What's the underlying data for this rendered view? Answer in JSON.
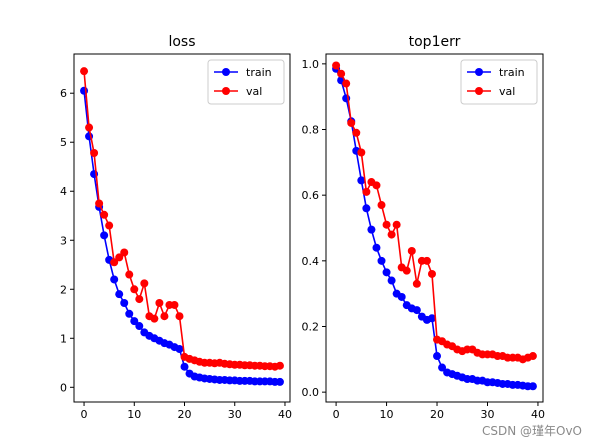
{
  "chart_data": [
    {
      "type": "line",
      "title": "loss",
      "xlabel": "",
      "ylabel": "",
      "xlim": [
        -2,
        41
      ],
      "ylim": [
        -0.3,
        6.8
      ],
      "xticks": [
        0,
        10,
        20,
        30,
        40
      ],
      "yticks": [
        0,
        1,
        2,
        3,
        4,
        5,
        6
      ],
      "legend_position": "top-right",
      "x": [
        0,
        1,
        2,
        3,
        4,
        5,
        6,
        7,
        8,
        9,
        10,
        11,
        12,
        13,
        14,
        15,
        16,
        17,
        18,
        19,
        20,
        21,
        22,
        23,
        24,
        25,
        26,
        27,
        28,
        29,
        30,
        31,
        32,
        33,
        34,
        35,
        36,
        37,
        38,
        39
      ],
      "series": [
        {
          "name": "train",
          "color": "#0000ff",
          "values": [
            6.05,
            5.12,
            4.35,
            3.68,
            3.1,
            2.6,
            2.2,
            1.9,
            1.72,
            1.5,
            1.35,
            1.25,
            1.12,
            1.05,
            1.0,
            0.95,
            0.9,
            0.87,
            0.82,
            0.78,
            0.42,
            0.28,
            0.22,
            0.2,
            0.18,
            0.17,
            0.16,
            0.15,
            0.15,
            0.14,
            0.14,
            0.13,
            0.13,
            0.13,
            0.12,
            0.12,
            0.12,
            0.12,
            0.11,
            0.11
          ]
        },
        {
          "name": "val",
          "color": "#ff0000",
          "values": [
            6.45,
            5.3,
            4.78,
            3.75,
            3.52,
            3.3,
            2.55,
            2.65,
            2.75,
            2.3,
            2.0,
            1.8,
            2.12,
            1.45,
            1.4,
            1.72,
            1.45,
            1.68,
            1.68,
            1.45,
            0.62,
            0.58,
            0.55,
            0.52,
            0.5,
            0.5,
            0.49,
            0.5,
            0.48,
            0.47,
            0.46,
            0.46,
            0.45,
            0.45,
            0.44,
            0.44,
            0.43,
            0.43,
            0.42,
            0.44
          ]
        }
      ]
    },
    {
      "type": "line",
      "title": "top1err",
      "xlabel": "",
      "ylabel": "",
      "xlim": [
        -2,
        41
      ],
      "ylim": [
        -0.03,
        1.03
      ],
      "xticks": [
        0,
        10,
        20,
        30,
        40
      ],
      "yticks": [
        0.0,
        0.2,
        0.4,
        0.6,
        0.8,
        1.0
      ],
      "legend_position": "top-right",
      "x": [
        0,
        1,
        2,
        3,
        4,
        5,
        6,
        7,
        8,
        9,
        10,
        11,
        12,
        13,
        14,
        15,
        16,
        17,
        18,
        19,
        20,
        21,
        22,
        23,
        24,
        25,
        26,
        27,
        28,
        29,
        30,
        31,
        32,
        33,
        34,
        35,
        36,
        37,
        38,
        39
      ],
      "series": [
        {
          "name": "train",
          "color": "#0000ff",
          "values": [
            0.985,
            0.95,
            0.895,
            0.825,
            0.735,
            0.645,
            0.56,
            0.495,
            0.44,
            0.4,
            0.365,
            0.34,
            0.3,
            0.29,
            0.265,
            0.255,
            0.25,
            0.23,
            0.22,
            0.225,
            0.11,
            0.075,
            0.06,
            0.055,
            0.05,
            0.045,
            0.04,
            0.04,
            0.035,
            0.035,
            0.03,
            0.03,
            0.028,
            0.025,
            0.025,
            0.022,
            0.022,
            0.02,
            0.018,
            0.018
          ]
        },
        {
          "name": "val",
          "color": "#ff0000",
          "values": [
            0.995,
            0.97,
            0.94,
            0.82,
            0.79,
            0.73,
            0.61,
            0.64,
            0.63,
            0.57,
            0.51,
            0.48,
            0.51,
            0.38,
            0.37,
            0.43,
            0.33,
            0.4,
            0.4,
            0.36,
            0.16,
            0.155,
            0.145,
            0.14,
            0.13,
            0.125,
            0.13,
            0.13,
            0.12,
            0.115,
            0.115,
            0.115,
            0.11,
            0.11,
            0.105,
            0.105,
            0.105,
            0.1,
            0.105,
            0.11
          ]
        }
      ]
    }
  ],
  "watermark": "CSDN @瑾年OvO"
}
